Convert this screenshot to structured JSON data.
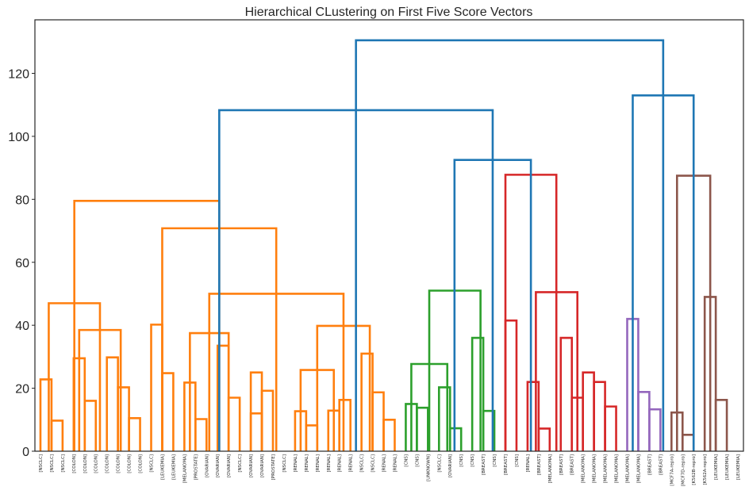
{
  "chart_data": {
    "type": "dendrogram",
    "title": "Hierarchical CLustering on First Five Score Vectors",
    "xlabel": "",
    "ylabel": "",
    "ylim": [
      0,
      137
    ],
    "yticks": [
      0,
      20,
      40,
      60,
      80,
      100,
      120
    ],
    "colors": {
      "C1": "#ff7f0e",
      "C2": "#2ca02c",
      "C3": "#d62728",
      "C4": "#9467bd",
      "C5": "#8c564b",
      "above": "#1f77b4",
      "axis": "#262626"
    },
    "leaves": [
      "[NSCLC]",
      "[NSCLC]",
      "[NSCLC]",
      "[COLON]",
      "[COLON]",
      "[COLON]",
      "[COLON]",
      "[COLON]",
      "[COLON]",
      "[COLON]",
      "[NSCLC]",
      "[LEUKEMIA]",
      "[LEUKEMIA]",
      "[MELANOMA]",
      "[PROSTATE]",
      "[OVARIAN]",
      "[OVARIAN]",
      "[OVARIAN]",
      "[NSCLC]",
      "[OVARIAN]",
      "[OVARIAN]",
      "[PROSTATE]",
      "[NSCLC]",
      "[RENAL]",
      "[RENAL]",
      "[RENAL]",
      "[RENAL]",
      "[RENAL]",
      "[RENAL]",
      "[NSCLC]",
      "[NSCLC]",
      "[RENAL]",
      "[RENAL]",
      "[CNS]",
      "[CNS]",
      "[UNKNOWN]",
      "[NSCLC]",
      "[OVARIAN]",
      "[CNS]",
      "[CNS]",
      "[BREAST]",
      "[CNS]",
      "[BREAST]",
      "[CNS]",
      "[RENAL]",
      "[BREAST]",
      "[MELANOMA]",
      "[BREAST]",
      "[BREAST]",
      "[MELANOMA]",
      "[MELANOMA]",
      "[MELANOMA]",
      "[MELANOMA]",
      "[MELANOMA]",
      "[MELANOMA]",
      "[BREAST]",
      "[BREAST]",
      "[MCF7A-repro]",
      "[MCF7D-repro]",
      "[K562B-repro]",
      "[K562A-repro]",
      "[LEUKEMIA]",
      "[LEUKEMIA]",
      "[LEUKEMIA]"
    ],
    "links": [
      {
        "l": 0,
        "r": 1,
        "h": 22.8,
        "c": "C1"
      },
      {
        "l": 1,
        "r": 2,
        "h": 9.7,
        "c": "C1"
      },
      {
        "l": 3,
        "r": 4,
        "h": 29.5,
        "c": "C1"
      },
      {
        "l": 4,
        "r": 5,
        "h": 16.0,
        "c": "C1"
      },
      {
        "l": 6,
        "r": 7,
        "h": 29.8,
        "c": "C1"
      },
      {
        "l": 7,
        "r": 8,
        "h": 20.3,
        "c": "C1"
      },
      {
        "l": 8,
        "r": 9,
        "h": 10.5,
        "c": "C1"
      },
      {
        "l": 3.5,
        "r": 7.25,
        "h": 38.5,
        "c": "C1"
      },
      {
        "l": 0.75,
        "r": 5.375,
        "h": 47.0,
        "c": "C1"
      },
      {
        "l": 10,
        "r": 11,
        "h": 40.2,
        "c": "C1"
      },
      {
        "l": 11,
        "r": 12,
        "h": 24.8,
        "c": "C1"
      },
      {
        "l": 13,
        "r": 14,
        "h": 21.8,
        "c": "C1"
      },
      {
        "l": 14,
        "r": 15,
        "h": 10.2,
        "c": "C1"
      },
      {
        "l": 16,
        "r": 17,
        "h": 33.5,
        "c": "C1"
      },
      {
        "l": 17,
        "r": 18,
        "h": 17.0,
        "c": "C1"
      },
      {
        "l": 19,
        "r": 20,
        "h": 25.0,
        "c": "C1"
      },
      {
        "l": 19,
        "r": 20,
        "h": 12.0,
        "c": "C1"
      },
      {
        "l": 20,
        "r": 21,
        "h": 19.2,
        "c": "C1"
      },
      {
        "l": 13.5,
        "r": 17.0,
        "h": 37.5,
        "c": "C1"
      },
      {
        "l": 23,
        "r": 24,
        "h": 12.7,
        "c": "C1"
      },
      {
        "l": 24,
        "r": 25,
        "h": 8.2,
        "c": "C1"
      },
      {
        "l": 26,
        "r": 27,
        "h": 12.9,
        "c": "C1"
      },
      {
        "l": 27,
        "r": 28,
        "h": 16.3,
        "c": "C1"
      },
      {
        "l": 23.5,
        "r": 26.5,
        "h": 25.8,
        "c": "C1"
      },
      {
        "l": 29,
        "r": 30,
        "h": 31.0,
        "c": "C1"
      },
      {
        "l": 30,
        "r": 31,
        "h": 18.7,
        "c": "C1"
      },
      {
        "l": 31,
        "r": 32,
        "h": 10.0,
        "c": "C1"
      },
      {
        "l": 25.0,
        "r": 29.75,
        "h": 39.8,
        "c": "C1"
      },
      {
        "l": 15.25,
        "r": 27.375,
        "h": 50.0,
        "c": "C1"
      },
      {
        "l": 11.0,
        "r": 21.3,
        "h": 70.8,
        "c": "C1"
      },
      {
        "l": 3.06,
        "r": 16.15,
        "h": 79.5,
        "c": "C1"
      },
      {
        "l": 33,
        "r": 34,
        "h": 15.0,
        "c": "C2"
      },
      {
        "l": 34,
        "r": 35,
        "h": 13.8,
        "c": "C2"
      },
      {
        "l": 36,
        "r": 37,
        "h": 20.3,
        "c": "C2"
      },
      {
        "l": 37,
        "r": 38,
        "h": 7.3,
        "c": "C2"
      },
      {
        "l": 33.5,
        "r": 36.75,
        "h": 27.7,
        "c": "C2"
      },
      {
        "l": 39,
        "r": 40,
        "h": 36.0,
        "c": "C2"
      },
      {
        "l": 40,
        "r": 41,
        "h": 12.8,
        "c": "C2"
      },
      {
        "l": 35.12,
        "r": 39.75,
        "h": 51.0,
        "c": "C2"
      },
      {
        "l": 42,
        "r": 43,
        "h": 41.5,
        "c": "C3"
      },
      {
        "l": 44,
        "r": 45,
        "h": 22.0,
        "c": "C3"
      },
      {
        "l": 45,
        "r": 46,
        "h": 7.2,
        "c": "C3"
      },
      {
        "l": 47,
        "r": 48,
        "h": 36.0,
        "c": "C3"
      },
      {
        "l": 48,
        "r": 49,
        "h": 17.0,
        "c": "C3"
      },
      {
        "l": 49,
        "r": 50,
        "h": 25.0,
        "c": "C3"
      },
      {
        "l": 50,
        "r": 51,
        "h": 22.0,
        "c": "C3"
      },
      {
        "l": 51,
        "r": 52,
        "h": 14.2,
        "c": "C3"
      },
      {
        "l": 44.75,
        "r": 48.5,
        "h": 50.5,
        "c": "C3"
      },
      {
        "l": 42.0,
        "r": 46.6,
        "h": 87.8,
        "c": "C3"
      },
      {
        "l": 37.4,
        "r": 44.3,
        "h": 92.5,
        "c": "above"
      },
      {
        "l": 16.15,
        "r": 40.85,
        "h": 108.3,
        "c": "above"
      },
      {
        "l": 53,
        "r": 54,
        "h": 42.0,
        "c": "C4"
      },
      {
        "l": 54,
        "r": 55,
        "h": 18.8,
        "c": "C4"
      },
      {
        "l": 55,
        "r": 56,
        "h": 13.3,
        "c": "C4"
      },
      {
        "l": 57,
        "r": 58,
        "h": 12.3,
        "c": "C5"
      },
      {
        "l": 58,
        "r": 59,
        "h": 5.2,
        "c": "C5"
      },
      {
        "l": 60,
        "r": 61,
        "h": 49.0,
        "c": "C5"
      },
      {
        "l": 61,
        "r": 62,
        "h": 16.3,
        "c": "C5"
      },
      {
        "l": 57.5,
        "r": 60.5,
        "h": 87.5,
        "c": "C5"
      },
      {
        "l": 53.5,
        "r": 59.0,
        "h": 113.0,
        "c": "above"
      },
      {
        "l": 28.5,
        "r": 56.25,
        "h": 130.5,
        "c": "above"
      }
    ]
  }
}
